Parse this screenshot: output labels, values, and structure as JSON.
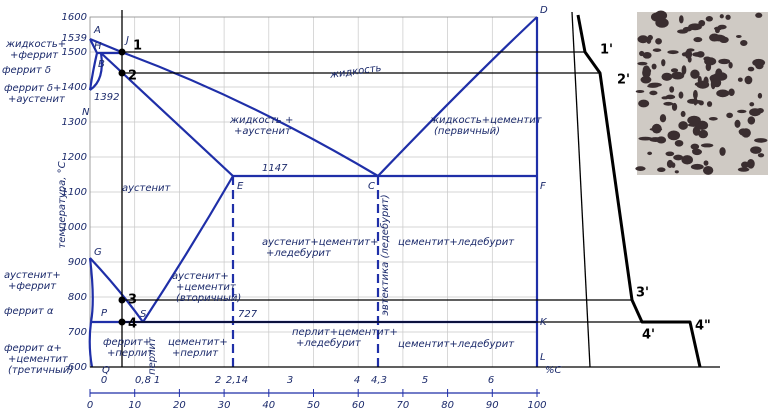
{
  "axis": {
    "title": "температура, °С",
    "unit": "%С",
    "temperatures": [
      "1600",
      "1539",
      "1500",
      "1400",
      "1392",
      "1300",
      "1200",
      "1100",
      "1000",
      "900",
      "800",
      "700",
      "600"
    ],
    "carbon": [
      "0",
      "0,8",
      "1",
      "2",
      "2,14",
      "3",
      "4",
      "4,3",
      "5",
      "6"
    ],
    "scale": [
      "0",
      "10",
      "20",
      "30",
      "40",
      "50",
      "60",
      "70",
      "80",
      "90",
      "100"
    ]
  },
  "points": [
    "A",
    "H",
    "J",
    "B",
    "N",
    "D",
    "G",
    "P",
    "S",
    "Q",
    "E",
    "C",
    "F",
    "K",
    "L"
  ],
  "alloy_points": [
    "1",
    "2",
    "3",
    "4"
  ],
  "cooling_points": [
    "1'",
    "2'",
    "3'",
    "4'",
    "4\""
  ],
  "levels": [
    "1147",
    "727"
  ],
  "regions": [
    [
      "жидкость+",
      "+феррит"
    ],
    [
      "феррит δ"
    ],
    [
      "феррит δ+",
      "+аустенит"
    ],
    [
      "аустенит+",
      "+феррит"
    ],
    [
      "феррит α"
    ],
    [
      "феррит α+",
      "+цементит",
      "(третичный)"
    ],
    [
      "жидкость"
    ],
    [
      "жидкость +",
      "+аустенит"
    ],
    [
      "жидкость+цементит",
      "(первичный)"
    ],
    [
      "аустенит"
    ],
    [
      "аустенит+цементит+",
      "+ледебурит"
    ],
    [
      "цементит+ледебурит"
    ],
    [
      "эвтектика (ледебурит)"
    ],
    [
      "аустенит+",
      "+цементит",
      "(вторичный)"
    ],
    [
      "перлит+цементит+",
      "+ледебурит"
    ],
    [
      "цементит+ледебурит"
    ],
    [
      "феррит+",
      "+перлит"
    ],
    [
      "перлит"
    ],
    [
      "цементит+",
      "+перлит"
    ]
  ]
}
